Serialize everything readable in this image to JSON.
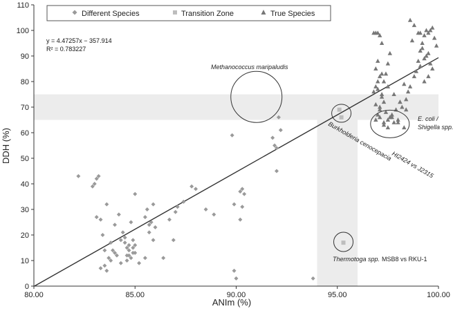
{
  "chart_data": {
    "type": "scatter",
    "xlabel": "ANIm (%)",
    "ylabel": "DDH (%)",
    "xlim": [
      80,
      100
    ],
    "ylim": [
      0,
      110
    ],
    "x_ticks": [
      "80.00",
      "85.00",
      "90.00",
      "95.00",
      "100.00"
    ],
    "y_ticks": [
      "0",
      "10",
      "20",
      "30",
      "40",
      "50",
      "60",
      "70",
      "80",
      "90",
      "100",
      "110"
    ],
    "grid": false,
    "legend_position": "top",
    "trendline": {
      "equation": "y = 4.47257x − 357.914",
      "r2": "R² = 0.783227",
      "slope": 4.47257,
      "intercept": -357.914
    },
    "colors": {
      "points": "#9a9a9a",
      "band": "#ececec",
      "line": "#333333"
    },
    "bands": {
      "horizontal_y": [
        65,
        75
      ],
      "vertical_x": [
        94,
        96
      ]
    },
    "series": [
      {
        "name": "Different Species",
        "marker": "diamond",
        "x": [
          82.2,
          82.9,
          83.0,
          83.1,
          83.2,
          83.1,
          83.3,
          83.4,
          83.5,
          83.3,
          83.6,
          83.8,
          84.0,
          84.2,
          84.4,
          84.5,
          84.6,
          84.7,
          84.8,
          84.9,
          85.0,
          84.8,
          84.5,
          84.3,
          84.1,
          83.9,
          83.7,
          83.5,
          83.6,
          83.8,
          84.0,
          84.3,
          84.6,
          84.7,
          84.9,
          85.0,
          85.2,
          85.5,
          85.6,
          85.7,
          85.8,
          85.9,
          85.9,
          85.7,
          85.5,
          86.0,
          86.4,
          86.7,
          86.9,
          87.0,
          87.1,
          87.4,
          87.8,
          88.0,
          88.5,
          88.9,
          89.8,
          89.9,
          90.0,
          90.2,
          90.3,
          90.4,
          90.3,
          90.2,
          89.9,
          91.8,
          91.9,
          92.0,
          92.2,
          92.1,
          92.0,
          93.8,
          85.0,
          84.9,
          84.7,
          84.6
        ],
        "y": [
          43,
          39,
          40,
          42,
          43,
          27,
          26,
          20,
          14,
          7,
          32,
          17,
          24,
          28,
          21,
          17,
          15,
          12,
          11,
          13,
          36,
          25,
          19,
          18,
          12,
          14,
          11,
          8,
          6,
          10,
          13,
          9,
          10,
          14,
          18,
          16,
          9,
          27,
          30,
          21,
          25,
          32,
          18,
          24,
          11,
          23,
          11,
          26,
          18,
          29,
          31,
          33,
          39,
          38,
          30,
          28,
          59,
          6,
          3,
          37,
          38,
          36,
          31,
          26,
          32,
          58,
          55,
          54,
          61,
          66,
          45,
          3,
          13,
          15,
          16,
          12
        ]
      },
      {
        "name": "Transition Zone",
        "marker": "square",
        "x": [
          95.1,
          95.2,
          95.3
        ],
        "y": [
          69,
          66,
          17
        ]
      },
      {
        "name": "True Species",
        "marker": "triangle",
        "x": [
          96.8,
          96.9,
          97.0,
          97.1,
          97.2,
          97.0,
          96.9,
          97.1,
          97.3,
          97.4,
          97.5,
          97.6,
          97.2,
          97.3,
          97.1,
          96.9,
          97.0,
          97.2,
          97.4,
          97.6,
          97.8,
          98.0,
          98.2,
          98.4,
          98.5,
          98.3,
          98.1,
          97.9,
          97.7,
          97.5,
          97.3,
          97.1,
          96.9,
          96.8,
          97.0,
          97.2,
          97.5,
          97.8,
          98.1,
          98.4,
          98.6,
          98.8,
          99.0,
          99.1,
          99.2,
          99.3,
          99.4,
          99.5,
          99.6,
          99.7,
          99.8,
          99.9,
          99.5,
          99.3,
          99.1,
          98.9,
          98.7,
          98.6,
          98.8,
          99.0,
          99.2,
          99.4,
          99.6,
          99.7,
          99.5,
          99.3,
          99.1,
          96.9,
          97.0,
          97.1,
          97.3,
          97.5,
          97.7,
          98.0,
          98.3
        ],
        "y": [
          99,
          99,
          99,
          98,
          95,
          88,
          85,
          82,
          80,
          83,
          87,
          91,
          75,
          72,
          70,
          78,
          77,
          74,
          68,
          66,
          64,
          65,
          70,
          73,
          76,
          79,
          72,
          69,
          67,
          65,
          63,
          66,
          71,
          76,
          80,
          83,
          78,
          75,
          72,
          69,
          78,
          82,
          88,
          92,
          95,
          98,
          100,
          99,
          100,
          101,
          97,
          94,
          91,
          89,
          86,
          84,
          96,
          104,
          102,
          99,
          93,
          90,
          87,
          85,
          82,
          80,
          99,
          65,
          67,
          69,
          64,
          62,
          66,
          64,
          62
        ]
      }
    ],
    "annotations": [
      {
        "text": "Methanococcus maripaludis",
        "italic": true
      },
      {
        "text": "Burkholderia cenocepacia",
        "italic": true
      },
      {
        "text": "HI2424 vs J2315",
        "italic": true
      },
      {
        "text": "E. coli /",
        "italic": true
      },
      {
        "text": "Shigella spp.",
        "italic": true
      },
      {
        "text": "Thermotoga spp.",
        "italic": true
      },
      {
        "text": "MSB8 vs RKU-1",
        "italic": false
      }
    ]
  }
}
